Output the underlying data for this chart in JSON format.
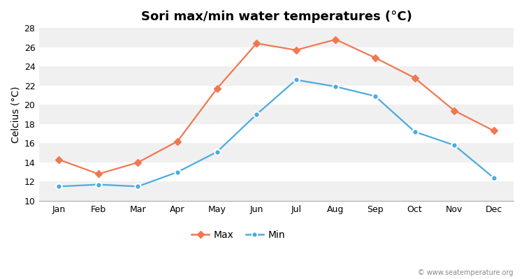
{
  "title": "Sori max/min water temperatures (°C)",
  "ylabel": "Celcius (°C)",
  "months": [
    "Jan",
    "Feb",
    "Mar",
    "Apr",
    "May",
    "Jun",
    "Jul",
    "Aug",
    "Sep",
    "Oct",
    "Nov",
    "Dec"
  ],
  "max_temps": [
    14.3,
    12.8,
    14.0,
    16.2,
    21.7,
    26.4,
    25.7,
    26.8,
    24.9,
    22.8,
    19.4,
    17.3
  ],
  "min_temps": [
    11.5,
    11.7,
    11.5,
    13.0,
    15.1,
    19.0,
    22.6,
    21.9,
    20.9,
    17.2,
    15.8,
    12.4
  ],
  "max_color": "#f07850",
  "min_color": "#4aabe0",
  "fig_bg_color": "#ffffff",
  "band_colors": [
    "#f0f0f0",
    "#ffffff"
  ],
  "ylim": [
    10,
    28
  ],
  "yticks": [
    10,
    12,
    14,
    16,
    18,
    20,
    22,
    24,
    26,
    28
  ],
  "title_fontsize": 13,
  "axis_label_fontsize": 10,
  "tick_fontsize": 9,
  "legend_labels": [
    "Max",
    "Min"
  ],
  "watermark": "© www.seatemperature.org"
}
